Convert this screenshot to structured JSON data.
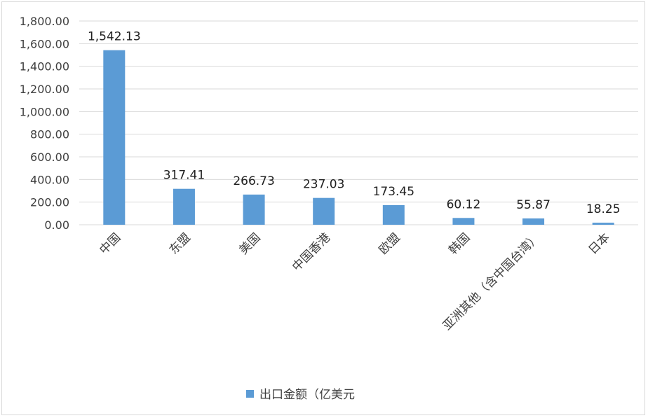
{
  "chart_data": {
    "type": "bar",
    "categories": [
      "中国",
      "东盟",
      "美国",
      "中国香港",
      "欧盟",
      "韩国",
      "亚洲其他（含中国台湾）",
      "日本"
    ],
    "series": [
      {
        "name": "出口金额（亿美元",
        "values": [
          1542.13,
          317.41,
          266.73,
          237.03,
          173.45,
          60.12,
          55.87,
          18.25
        ],
        "value_labels": [
          "1,542.13",
          "317.41",
          "266.73",
          "237.03",
          "173.45",
          "60.12",
          "55.87",
          "18.25"
        ]
      }
    ],
    "ylim": [
      0,
      1800
    ],
    "yticks": [
      0,
      200,
      400,
      600,
      800,
      1000,
      1200,
      1400,
      1600,
      1800
    ],
    "ytick_labels": [
      "0.00",
      "200.00",
      "400.00",
      "600.00",
      "800.00",
      "1,000.00",
      "1,200.00",
      "1,400.00",
      "1,600.00",
      "1,800.00"
    ],
    "grid": true,
    "legend_position": "bottom",
    "bar_color": "#5b9bd5",
    "grid_color": "#d9d9d9"
  }
}
